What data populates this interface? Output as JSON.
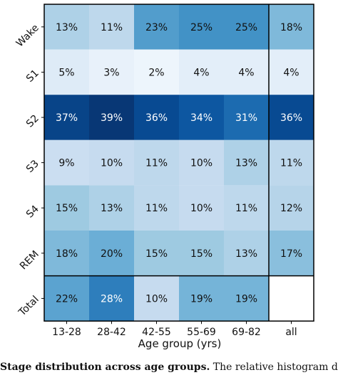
{
  "chart_data": {
    "type": "heatmap",
    "rows": [
      "Wake",
      "S1",
      "S2",
      "S3",
      "S4",
      "REM",
      "Total"
    ],
    "columns": [
      "13-28",
      "28-42",
      "42-55",
      "55-69",
      "69-82",
      "all"
    ],
    "cells": [
      [
        "13%",
        "11%",
        "23%",
        "25%",
        "25%",
        "18%"
      ],
      [
        "5%",
        "3%",
        "2%",
        "4%",
        "4%",
        "4%"
      ],
      [
        "37%",
        "39%",
        "36%",
        "34%",
        "31%",
        "36%"
      ],
      [
        "9%",
        "10%",
        "11%",
        "10%",
        "13%",
        "11%"
      ],
      [
        "15%",
        "13%",
        "11%",
        "10%",
        "11%",
        "12%"
      ],
      [
        "18%",
        "20%",
        "15%",
        "15%",
        "13%",
        "17%"
      ],
      [
        "22%",
        "28%",
        "10%",
        "19%",
        "19%",
        ""
      ]
    ],
    "values": [
      [
        13,
        11,
        23,
        25,
        25,
        18
      ],
      [
        5,
        3,
        2,
        4,
        4,
        4
      ],
      [
        37,
        39,
        36,
        34,
        31,
        36
      ],
      [
        9,
        10,
        11,
        10,
        13,
        11
      ],
      [
        15,
        13,
        11,
        10,
        11,
        12
      ],
      [
        18,
        20,
        15,
        15,
        13,
        17
      ],
      [
        22,
        28,
        10,
        19,
        19,
        null
      ]
    ],
    "xlabel": "Age group  (yrs)",
    "ylabel": "",
    "colormap": "Blues",
    "colorscale": [
      "#f7fbff",
      "#deebf7",
      "#c6dbef",
      "#9ecae1",
      "#6baed6",
      "#4292c6",
      "#2171b5",
      "#08519c",
      "#08306b"
    ],
    "separators": "black lines before last column and before last row"
  },
  "caption": {
    "bold": "Stage distribution across age groups.",
    "text": " The relative histogram di"
  }
}
